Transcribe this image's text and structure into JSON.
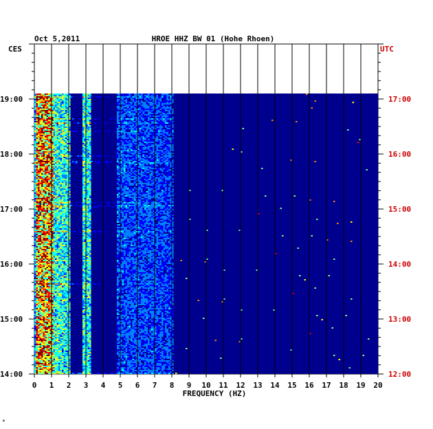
{
  "header": {
    "date": "Oct 5,2011",
    "station": "HROE HHZ BW 01 (Hohe Rhoen)"
  },
  "colors": {
    "background": "#ffffff",
    "spectrogram_base": "#00008f",
    "grid": "#000000",
    "utc_labels": "#cc0000"
  },
  "footer_mark": "*",
  "chart_data": {
    "type": "heatmap",
    "title": "HROE HHZ BW 01 (Hohe Rhoen)",
    "xlabel": "FREQUENCY (HZ)",
    "xlim": [
      0,
      20
    ],
    "x_ticks": [
      "0",
      "1",
      "2",
      "3",
      "4",
      "5",
      "6",
      "7",
      "8",
      "9",
      "10",
      "11",
      "12",
      "13",
      "14",
      "15",
      "16",
      "17",
      "18",
      "19",
      "20"
    ],
    "left_axis": {
      "label": "CES",
      "ticks": [
        "19:00",
        "18:00",
        "17:00",
        "16:00",
        "15:00",
        "14:00"
      ]
    },
    "right_axis": {
      "label": "UTC",
      "ticks": [
        "17:00",
        "16:00",
        "15:00",
        "14:00",
        "13:00",
        "12:00"
      ]
    },
    "time_range_ces": [
      "14:00",
      "19:10"
    ],
    "colormap": [
      "#00008f",
      "#0000ff",
      "#0080ff",
      "#00ffff",
      "#80ff80",
      "#ffff00",
      "#ff8000",
      "#ff0000",
      "#800000"
    ],
    "energy_bands": [
      {
        "freq_range": [
          0.1,
          1.0
        ],
        "level": "high"
      },
      {
        "freq_range": [
          1.0,
          2.0
        ],
        "level": "moderate"
      },
      {
        "freq_range": [
          2.8,
          3.2
        ],
        "level": "moderate"
      },
      {
        "freq_range": [
          4.8,
          5.2
        ],
        "level": "low"
      },
      {
        "freq_range": [
          5.0,
          8.0
        ],
        "level": "low"
      }
    ],
    "grid": true
  }
}
